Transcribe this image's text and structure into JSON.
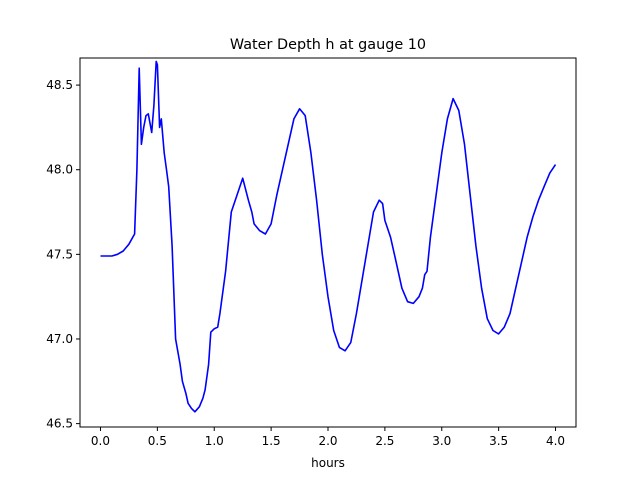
{
  "chart_data": {
    "type": "line",
    "title": "Water Depth h at gauge 10",
    "xlabel": "hours",
    "ylabel": "",
    "xlim": [
      -0.18,
      4.18
    ],
    "ylim": [
      46.48,
      48.66
    ],
    "xticks": [
      "0.0",
      "0.5",
      "1.0",
      "1.5",
      "2.0",
      "2.5",
      "3.0",
      "3.5",
      "4.0"
    ],
    "xtick_values": [
      0.0,
      0.5,
      1.0,
      1.5,
      2.0,
      2.5,
      3.0,
      3.5,
      4.0
    ],
    "yticks": [
      "46.5",
      "47.0",
      "47.5",
      "48.0",
      "48.5"
    ],
    "ytick_values": [
      46.5,
      47.0,
      47.5,
      48.0,
      48.5
    ],
    "grid": false,
    "series": [
      {
        "color": "#0000ff",
        "x": [
          0.0,
          0.1,
          0.15,
          0.2,
          0.25,
          0.3,
          0.32,
          0.34,
          0.36,
          0.38,
          0.4,
          0.42,
          0.45,
          0.47,
          0.49,
          0.5,
          0.52,
          0.535,
          0.56,
          0.58,
          0.6,
          0.63,
          0.66,
          0.7,
          0.72,
          0.75,
          0.77,
          0.8,
          0.83,
          0.87,
          0.9,
          0.92,
          0.95,
          0.97,
          1.0,
          1.03,
          1.05,
          1.1,
          1.15,
          1.2,
          1.25,
          1.3,
          1.33,
          1.35,
          1.4,
          1.45,
          1.5,
          1.55,
          1.6,
          1.65,
          1.7,
          1.75,
          1.8,
          1.85,
          1.9,
          1.95,
          2.0,
          2.05,
          2.1,
          2.15,
          2.2,
          2.25,
          2.3,
          2.35,
          2.4,
          2.45,
          2.48,
          2.5,
          2.55,
          2.6,
          2.65,
          2.7,
          2.75,
          2.8,
          2.83,
          2.85,
          2.87,
          2.9,
          2.95,
          3.0,
          3.05,
          3.1,
          3.15,
          3.2,
          3.25,
          3.3,
          3.35,
          3.4,
          3.45,
          3.5,
          3.55,
          3.6,
          3.65,
          3.7,
          3.75,
          3.8,
          3.85,
          3.9,
          3.95,
          4.0
        ],
        "y": [
          47.49,
          47.49,
          47.5,
          47.52,
          47.56,
          47.62,
          48.0,
          48.6,
          48.15,
          48.25,
          48.32,
          48.33,
          48.22,
          48.38,
          48.64,
          48.62,
          48.25,
          48.3,
          48.1,
          48.0,
          47.9,
          47.55,
          47.0,
          46.85,
          46.75,
          46.68,
          46.62,
          46.59,
          46.57,
          46.6,
          46.65,
          46.7,
          46.85,
          47.04,
          47.06,
          47.07,
          47.15,
          47.4,
          47.75,
          47.85,
          47.95,
          47.82,
          47.75,
          47.68,
          47.64,
          47.62,
          47.68,
          47.85,
          48.0,
          48.15,
          48.3,
          48.36,
          48.32,
          48.1,
          47.82,
          47.5,
          47.25,
          47.05,
          46.95,
          46.93,
          46.98,
          47.15,
          47.35,
          47.55,
          47.75,
          47.82,
          47.8,
          47.7,
          47.6,
          47.45,
          47.3,
          47.22,
          47.21,
          47.25,
          47.3,
          47.38,
          47.4,
          47.6,
          47.85,
          48.1,
          48.3,
          48.42,
          48.35,
          48.15,
          47.85,
          47.55,
          47.3,
          47.12,
          47.05,
          47.03,
          47.07,
          47.15,
          47.3,
          47.45,
          47.6,
          47.72,
          47.82,
          47.9,
          47.98,
          48.03
        ]
      }
    ]
  }
}
